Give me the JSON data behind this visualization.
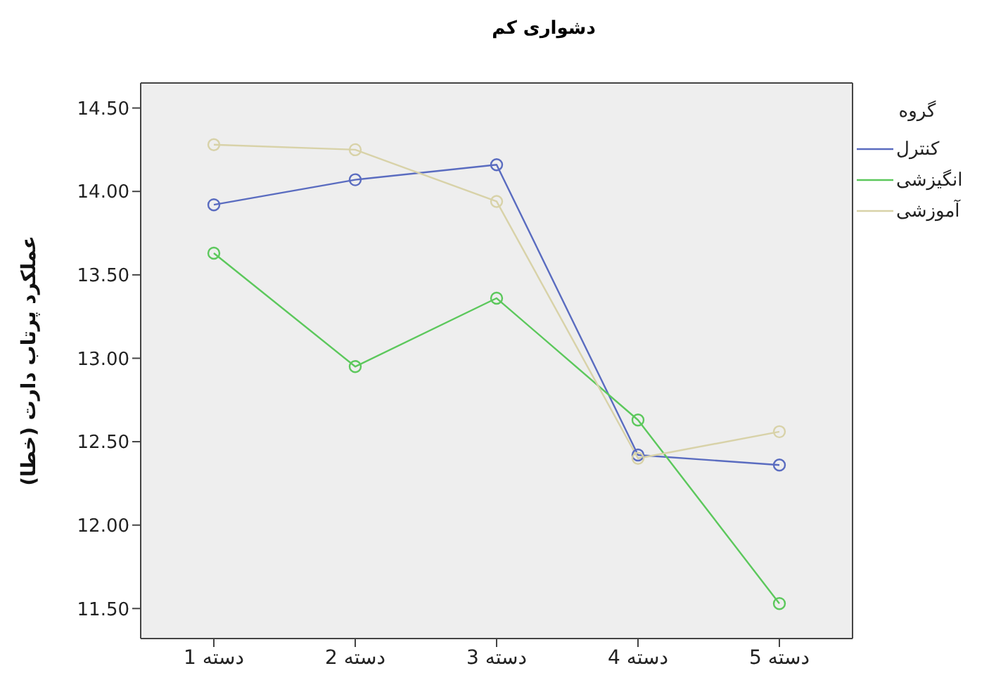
{
  "chart_data": {
    "type": "line",
    "title": "دشواری کم",
    "ylabel": "عملکرد پرتاب دارت (خطا)",
    "legend_title": "گروه",
    "categories": [
      "دسته 1",
      "دسته 2",
      "دسته 3",
      "دسته 4",
      "دسته 5"
    ],
    "series": [
      {
        "name": "کنترل",
        "color": "#5a6cc0",
        "values": [
          13.92,
          14.07,
          14.16,
          12.42,
          12.36
        ]
      },
      {
        "name": "انگیزشی",
        "color": "#5cc85c",
        "values": [
          13.63,
          12.95,
          13.36,
          12.63,
          11.53
        ]
      },
      {
        "name": "آموزشی",
        "color": "#d8d2a8",
        "values": [
          14.28,
          14.25,
          13.94,
          12.4,
          12.56
        ]
      }
    ],
    "ylim": [
      11.32,
      14.65
    ],
    "yticks": [
      {
        "value": 11.5,
        "label": "11.50"
      },
      {
        "value": 12,
        "label": "12.00"
      },
      {
        "value": 12.5,
        "label": "12.50"
      },
      {
        "value": 13,
        "label": "13.00"
      },
      {
        "value": 13.5,
        "label": "13.50"
      },
      {
        "value": 14,
        "label": "14.00"
      },
      {
        "value": 14.5,
        "label": "14.50"
      }
    ],
    "legend": "right",
    "marker": "circle",
    "grid": false
  }
}
